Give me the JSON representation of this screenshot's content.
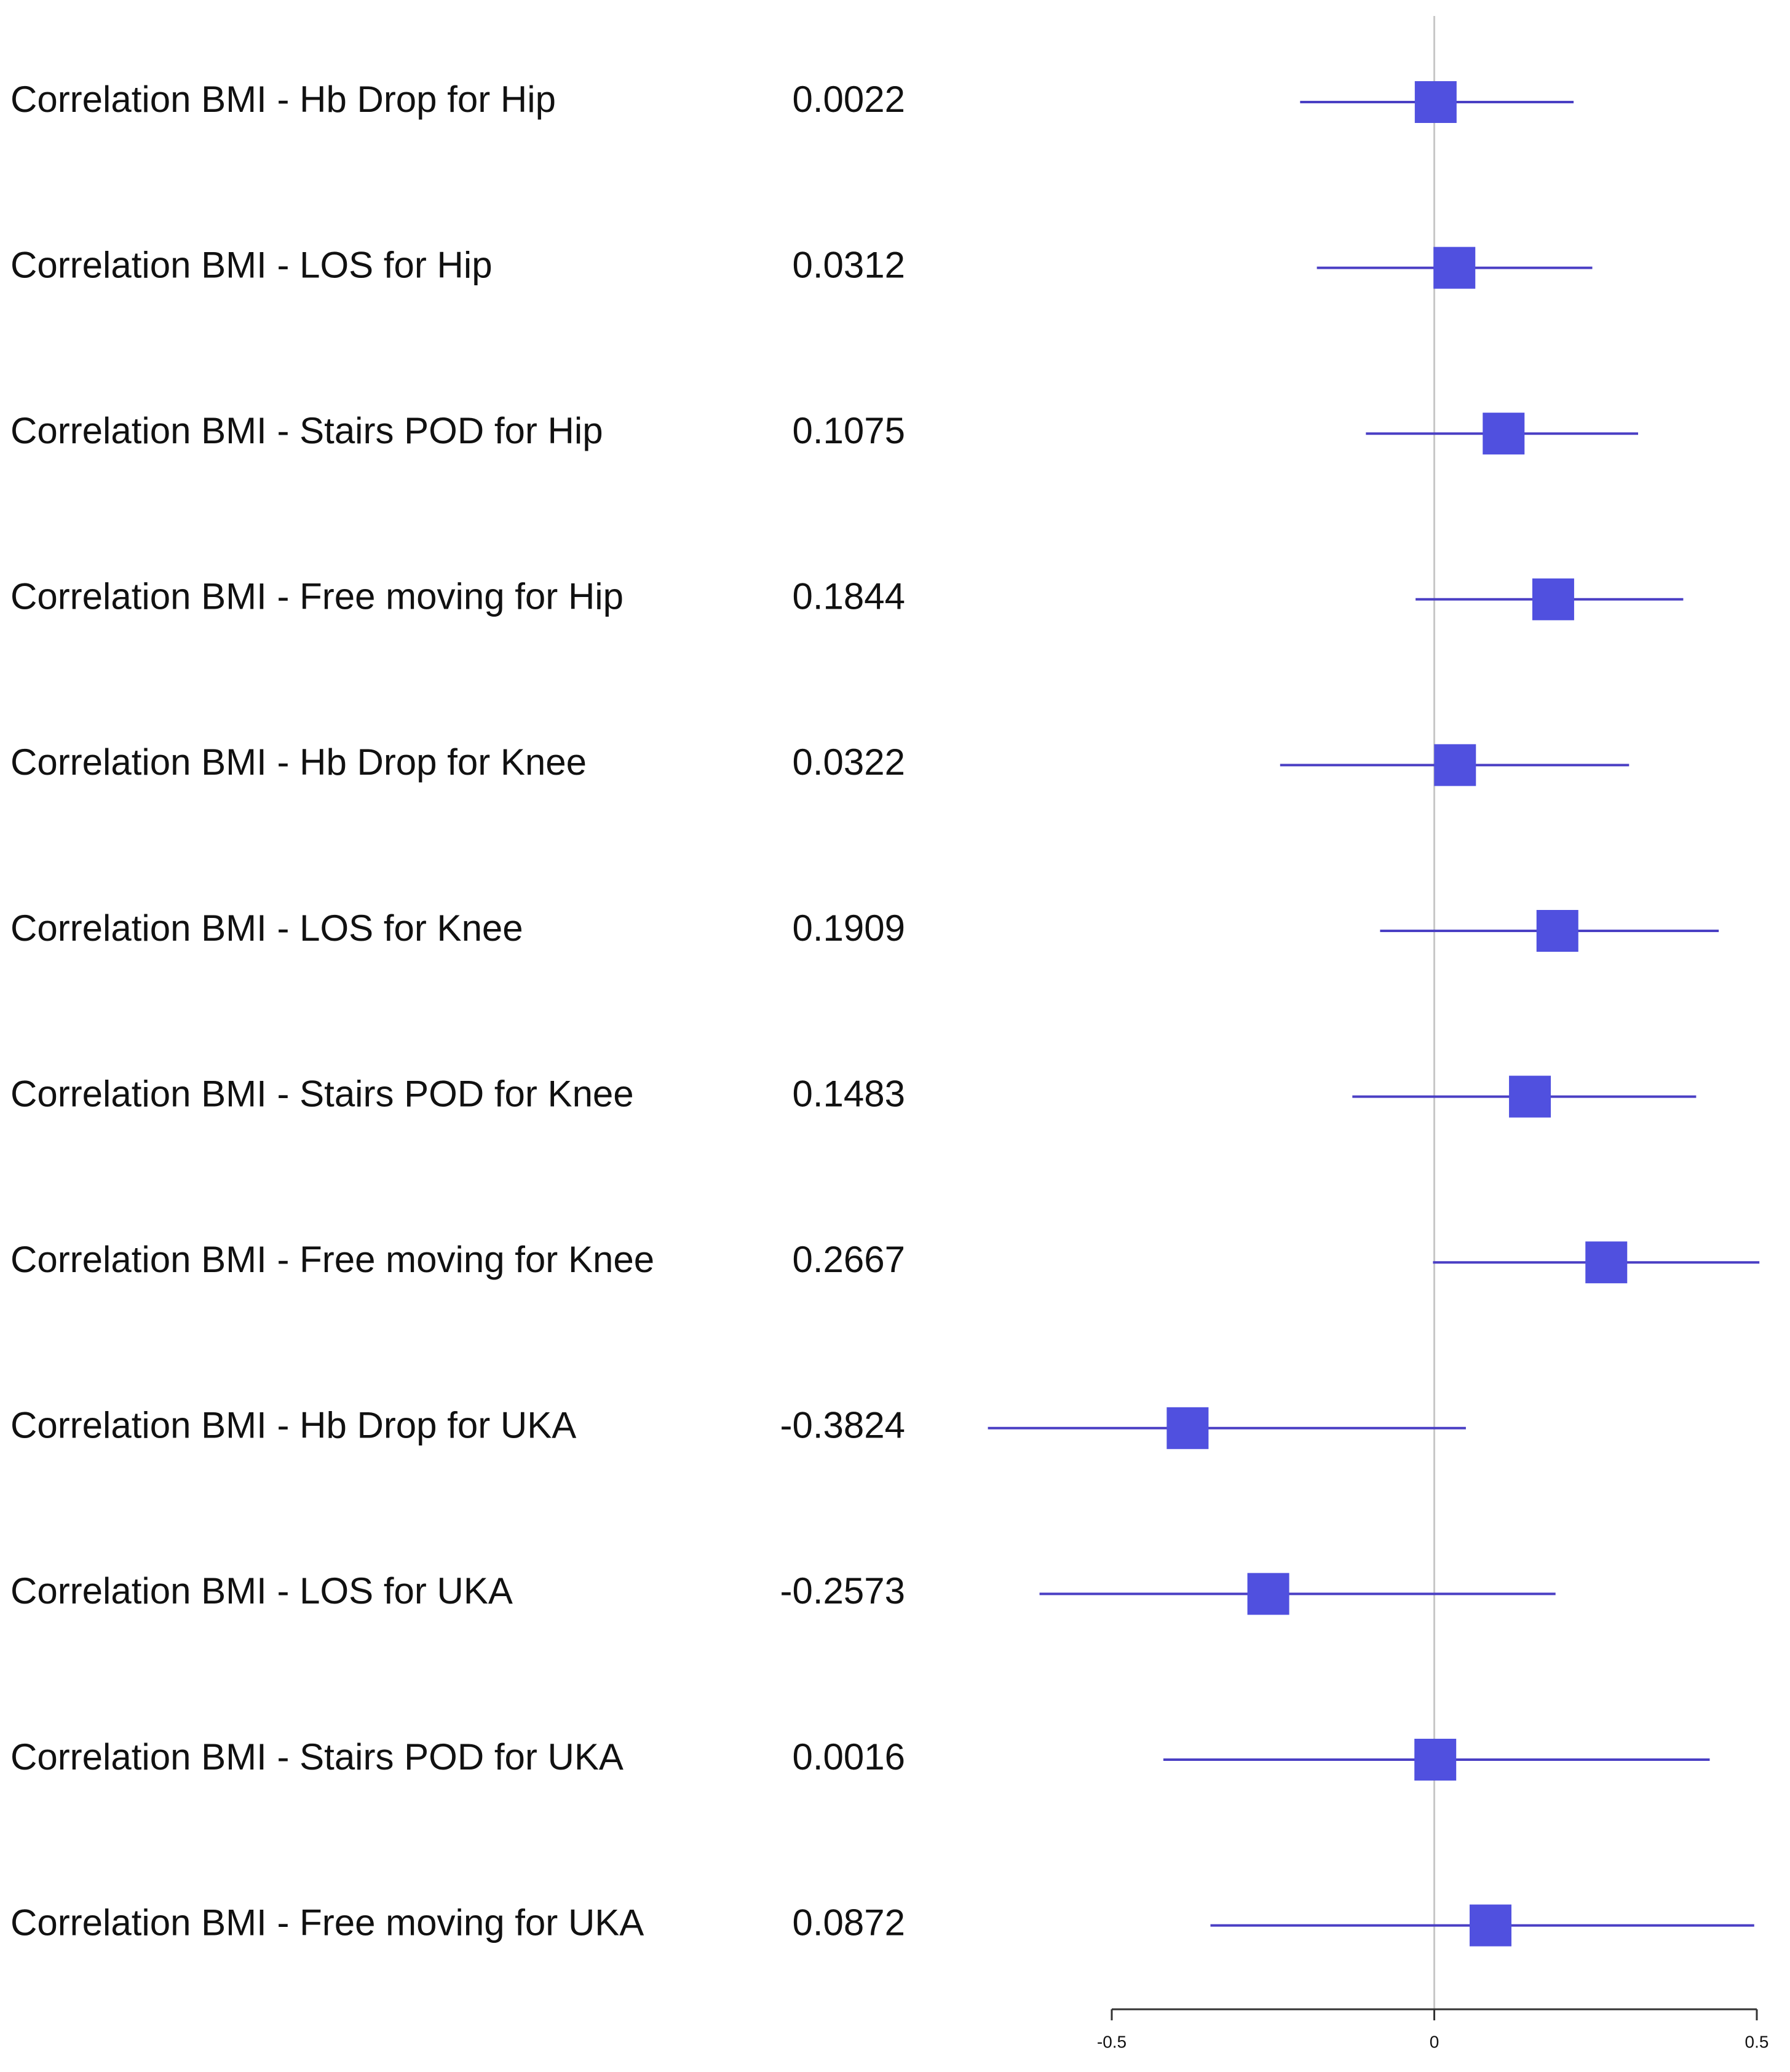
{
  "chart_data": {
    "type": "forest",
    "categories": [
      "Correlation BMI - Hb Drop for Hip",
      "Correlation BMI - LOS for Hip",
      "Correlation BMI - Stairs POD for Hip",
      "Correlation BMI - Free moving for Hip",
      "Correlation BMI - Hb Drop for Knee",
      "Correlation BMI - LOS for Knee",
      "Correlation BMI - Stairs POD for Knee",
      "Correlation BMI - Free moving for Knee",
      "Correlation BMI - Hb Drop for UKA",
      "Correlation BMI - LOS for UKA",
      "Correlation BMI - Stairs POD for UKA",
      "Correlation BMI - Free moving for UKA"
    ],
    "values": [
      0.0022,
      0.0312,
      0.1075,
      0.1844,
      0.0322,
      0.1909,
      0.1483,
      0.2667,
      -0.3824,
      -0.2573,
      0.0016,
      0.0872
    ],
    "ci_low": [
      -0.208,
      -0.182,
      -0.106,
      -0.029,
      -0.239,
      -0.084,
      -0.127,
      -0.002,
      -0.692,
      -0.612,
      -0.42,
      -0.347
    ],
    "ci_high": [
      0.216,
      0.245,
      0.316,
      0.386,
      0.302,
      0.441,
      0.406,
      0.504,
      0.049,
      0.188,
      0.427,
      0.496
    ],
    "color": "#5050df",
    "line_color": "#4a3fc4",
    "xlim": [
      -0.5,
      0.5
    ],
    "xticks": [
      -0.5,
      0,
      0.5
    ],
    "ref_line": 0
  }
}
